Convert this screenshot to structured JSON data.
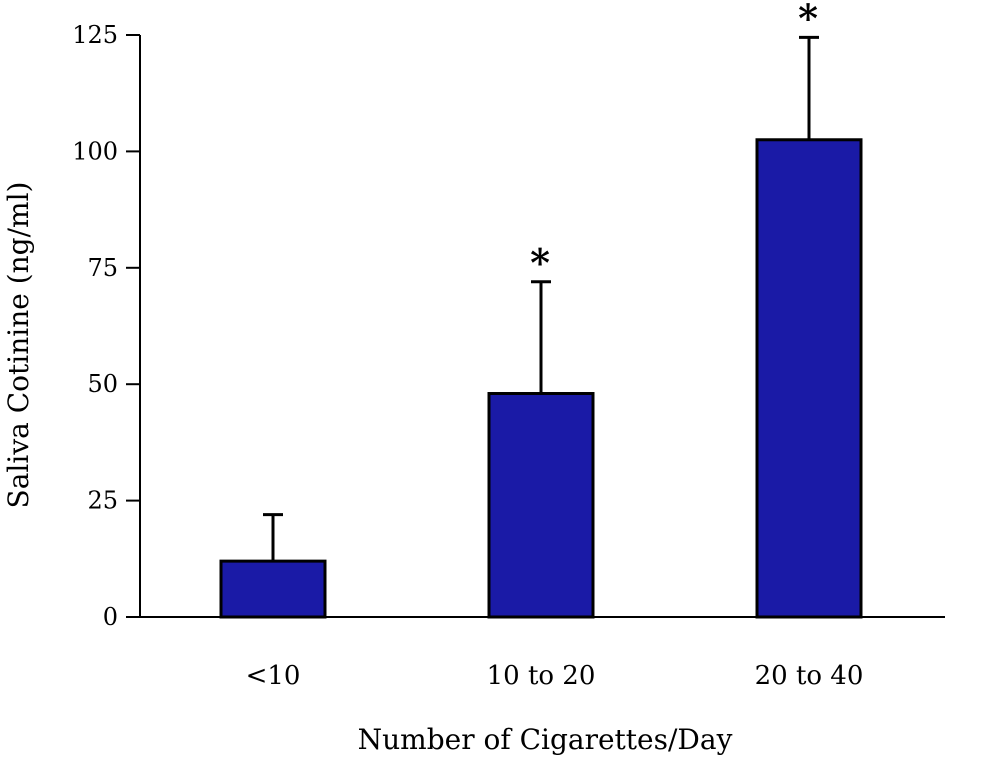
{
  "chart_data": {
    "type": "bar",
    "categories": [
      "<10",
      "10 to 20",
      "20 to 40"
    ],
    "values": [
      12,
      48,
      102.5
    ],
    "error_plus": [
      10,
      24,
      22
    ],
    "significance": [
      "",
      "*",
      "*"
    ],
    "xlabel": "Number of Cigarettes/Day",
    "ylabel": "Saliva Cotinine (ng/ml)",
    "ylim": [
      0,
      125
    ],
    "yticks": [
      "0",
      "25",
      "50",
      "75",
      "100",
      "125"
    ],
    "grid": false,
    "bar_color": "#1a1aa6",
    "edge_color": "#000000"
  }
}
